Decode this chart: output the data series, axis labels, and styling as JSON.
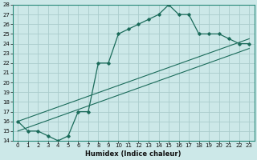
{
  "xlabel": "Humidex (Indice chaleur)",
  "bg_color": "#cce8e8",
  "grid_color": "#aacccc",
  "line_color": "#1a6b5a",
  "xlim": [
    -0.5,
    23.5
  ],
  "ylim": [
    14,
    28
  ],
  "xticks": [
    0,
    1,
    2,
    3,
    4,
    5,
    6,
    7,
    8,
    9,
    10,
    11,
    12,
    13,
    14,
    15,
    16,
    17,
    18,
    19,
    20,
    21,
    22,
    23
  ],
  "yticks": [
    14,
    15,
    16,
    17,
    18,
    19,
    20,
    21,
    22,
    23,
    24,
    25,
    26,
    27,
    28
  ],
  "line1_x": [
    0,
    1,
    2,
    3,
    4,
    5,
    6,
    7,
    8,
    9,
    10,
    11,
    12,
    13,
    14,
    15,
    16,
    17,
    18,
    19,
    20,
    21,
    22,
    23
  ],
  "line1_y": [
    16,
    15,
    15,
    14.5,
    14,
    14.5,
    17,
    17,
    22,
    22,
    25,
    25.5,
    26,
    26.5,
    27,
    28,
    27,
    27,
    25,
    25,
    25,
    24.5,
    24,
    24
  ],
  "line2_x": [
    0,
    23
  ],
  "line2_y": [
    16,
    24.5
  ],
  "line3_x": [
    0,
    23
  ],
  "line3_y": [
    15,
    23.5
  ],
  "tick_fontsize": 5.0,
  "xlabel_fontsize": 6.0,
  "xlabel_fontweight": "bold"
}
